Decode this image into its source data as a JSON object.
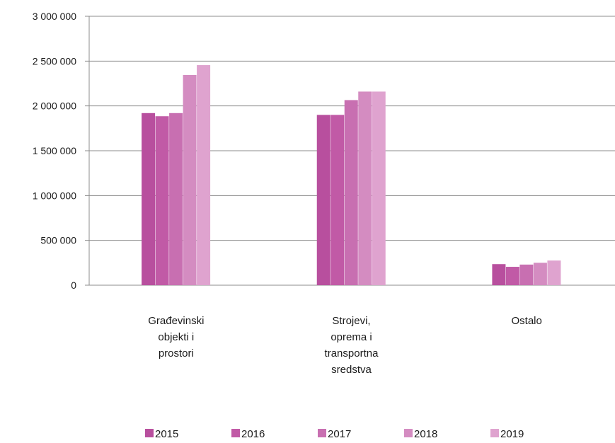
{
  "chart_data": {
    "type": "bar",
    "categories": [
      [
        "Građevinski",
        "objekti i",
        "prostori"
      ],
      [
        "Strojevi,",
        "oprema i",
        "transportna",
        "sredstva"
      ],
      [
        "Ostalo"
      ]
    ],
    "series": [
      {
        "name": "2015",
        "color": "#b84f9e",
        "values": [
          1920000,
          1900000,
          235000
        ]
      },
      {
        "name": "2016",
        "color": "#c15aa6",
        "values": [
          1885000,
          1900000,
          205000
        ]
      },
      {
        "name": "2017",
        "color": "#c86fb1",
        "values": [
          1920000,
          2065000,
          230000
        ]
      },
      {
        "name": "2018",
        "color": "#d48cc1",
        "values": [
          2345000,
          2160000,
          250000
        ]
      },
      {
        "name": "2019",
        "color": "#dfa3cf",
        "values": [
          2455000,
          2160000,
          275000
        ]
      }
    ],
    "yticks": [
      "0",
      "500 000",
      "1 000 000",
      "1 500 000",
      "2 000 000",
      "2 500 000",
      "3 000 000"
    ],
    "ylim": [
      0,
      3000000
    ],
    "grid": true,
    "legend_position": "bottom"
  }
}
